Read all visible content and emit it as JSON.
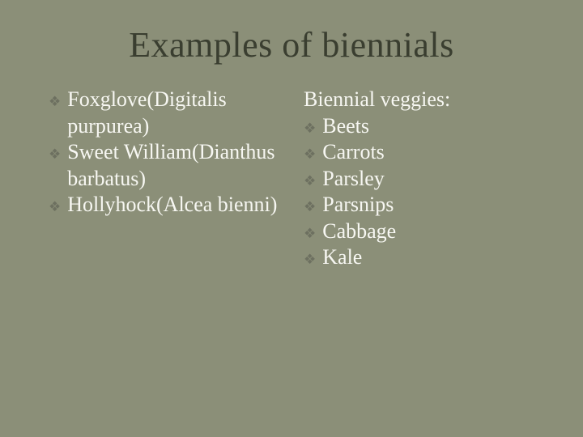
{
  "colors": {
    "background": "#8b8f78",
    "title": "#3a3e30",
    "text": "#f7f7f2",
    "bullet": "#6d7060"
  },
  "title": "Examples of biennials",
  "left": {
    "items": [
      "Foxglove(Digitalis purpurea)",
      "Sweet William(Dianthus barbatus)",
      "Hollyhock(Alcea bienni)"
    ]
  },
  "right": {
    "heading": "Biennial veggies:",
    "items": [
      "Beets",
      "Carrots",
      "Parsley",
      "Parsnips",
      "Cabbage",
      "Kale"
    ]
  },
  "bullet_glyph": "❖"
}
